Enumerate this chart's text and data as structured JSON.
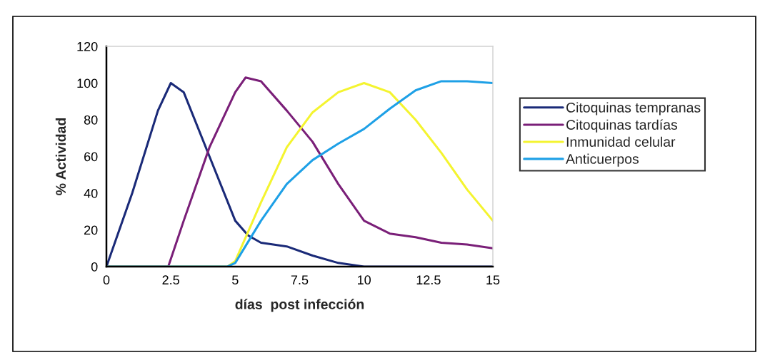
{
  "chart_data": {
    "type": "line",
    "xlabel": "días  post infección",
    "ylabel": "% Actividad",
    "xlim": [
      0,
      15
    ],
    "xticks": [
      0,
      2.5,
      5,
      7.5,
      10,
      12.5,
      15
    ],
    "ylim": [
      0,
      120
    ],
    "yticks": [
      0,
      20,
      40,
      60,
      80,
      100,
      120
    ],
    "grid": false,
    "legend": "right",
    "marker": "none",
    "line_style": "solid",
    "series": [
      {
        "name": "Citoquinas tempranas",
        "color": "#1a2a78",
        "x": [
          0,
          1,
          2,
          2.5,
          3,
          4,
          5,
          5.5,
          6,
          7,
          8,
          9,
          10,
          11,
          12,
          13,
          15
        ],
        "values": [
          0,
          40,
          85,
          100,
          95,
          60,
          25,
          17,
          13,
          11,
          6,
          2,
          0,
          0,
          0,
          0,
          0
        ]
      },
      {
        "name": "Citoquinas tardías",
        "color": "#7a1f78",
        "x": [
          0,
          2.4,
          3,
          4,
          5,
          5.4,
          6,
          7,
          8,
          9,
          10,
          11,
          12,
          13,
          14,
          15
        ],
        "values": [
          0,
          0,
          25,
          65,
          95,
          103,
          101,
          85,
          68,
          45,
          25,
          18,
          16,
          13,
          12,
          10
        ]
      },
      {
        "name": "Inmunidad celular",
        "color": "#f4f430",
        "x": [
          0,
          4.7,
          5,
          6,
          7,
          8,
          9,
          10,
          11,
          12,
          13,
          14,
          15
        ],
        "values": [
          0,
          0,
          3,
          35,
          65,
          84,
          95,
          100,
          95,
          80,
          62,
          42,
          25
        ]
      },
      {
        "name": "Anticuerpos",
        "color": "#1ea0e6",
        "x": [
          0,
          4.7,
          5,
          6,
          7,
          8,
          9,
          10,
          11,
          12,
          13,
          14,
          15
        ],
        "values": [
          0,
          0,
          2,
          25,
          45,
          58,
          67,
          75,
          86,
          96,
          101,
          101,
          100
        ]
      }
    ]
  }
}
